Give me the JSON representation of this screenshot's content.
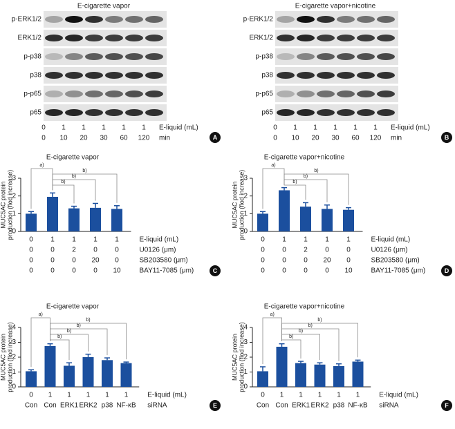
{
  "blots": [
    {
      "title": "E-cigarette vapor",
      "letter": "A",
      "rows": [
        "p-ERK1/2",
        "ERK1/2",
        "p-p38",
        "p38",
        "p-p65",
        "p65"
      ],
      "conditions": [
        {
          "label": "E-liquid (mL)",
          "values": [
            0,
            1,
            1,
            1,
            1,
            1
          ]
        },
        {
          "label": "min",
          "values": [
            0,
            10,
            20,
            30,
            60,
            120
          ]
        }
      ]
    },
    {
      "title": "E-cigarette vapor+nicotine",
      "letter": "B",
      "rows": [
        "p-ERK1/2",
        "ERK1/2",
        "p-p38",
        "p38",
        "p-p65",
        "p65"
      ],
      "conditions": [
        {
          "label": "E-liquid (mL)",
          "values": [
            0,
            1,
            1,
            1,
            1,
            1
          ]
        },
        {
          "label": "min",
          "values": [
            0,
            10,
            20,
            30,
            60,
            120
          ]
        }
      ]
    }
  ],
  "chart_data": [
    {
      "type": "bar",
      "title": "E-cigarette vapor",
      "letter": "C",
      "ylabel": [
        "MUC5AC protein",
        "production (flod increase)"
      ],
      "values": [
        1.0,
        1.95,
        1.3,
        1.33,
        1.27
      ],
      "errors": [
        0.12,
        0.22,
        0.12,
        0.25,
        0.18
      ],
      "color": "#1b4f9e",
      "ylim": [
        0,
        3
      ],
      "yticks": [
        0,
        1,
        2,
        3
      ],
      "brackets": [
        {
          "label": "a)",
          "bars": [
            0,
            1
          ]
        },
        {
          "label": "b)",
          "bars": [
            1,
            4
          ]
        },
        {
          "label": "b)",
          "bars": [
            1,
            3
          ]
        },
        {
          "label": "b)",
          "bars": [
            1,
            2
          ]
        }
      ],
      "conditions": [
        {
          "label": "E-liquid (mL)",
          "values": [
            0,
            1,
            1,
            1,
            1
          ]
        },
        {
          "label": "U0126 (μm)",
          "values": [
            0,
            0,
            2,
            0,
            0
          ]
        },
        {
          "label": "SB203580 (μm)",
          "values": [
            0,
            0,
            0,
            20,
            0
          ]
        },
        {
          "label": "BAY11-7085 (μm)",
          "values": [
            0,
            0,
            0,
            0,
            10
          ]
        }
      ]
    },
    {
      "type": "bar",
      "title": "E-cigarette vapor+nicotine",
      "letter": "D",
      "ylabel": [
        "MUC5AC protein",
        "production (flod increase)"
      ],
      "values": [
        1.0,
        2.32,
        1.4,
        1.27,
        1.22
      ],
      "errors": [
        0.12,
        0.15,
        0.22,
        0.22,
        0.12
      ],
      "color": "#1b4f9e",
      "ylim": [
        0,
        3
      ],
      "yticks": [
        0,
        1,
        2,
        3
      ],
      "brackets": [
        {
          "label": "a)",
          "bars": [
            0,
            1
          ]
        },
        {
          "label": "b)",
          "bars": [
            1,
            4
          ]
        },
        {
          "label": "b)",
          "bars": [
            1,
            3
          ]
        },
        {
          "label": "b)",
          "bars": [
            1,
            2
          ]
        }
      ],
      "conditions": [
        {
          "label": "E-liquid (mL)",
          "values": [
            0,
            1,
            1,
            1,
            1
          ]
        },
        {
          "label": "U0126 (μm)",
          "values": [
            0,
            0,
            2,
            0,
            0
          ]
        },
        {
          "label": "SB203580 (μm)",
          "values": [
            0,
            0,
            0,
            20,
            0
          ]
        },
        {
          "label": "BAY11-7085 (μm)",
          "values": [
            0,
            0,
            0,
            0,
            10
          ]
        }
      ]
    },
    {
      "type": "bar",
      "title": "E-cigarette vapor",
      "letter": "E",
      "ylabel": [
        "MUC5AC protein",
        "production (flod increase)"
      ],
      "values": [
        1.05,
        2.75,
        1.42,
        2.0,
        1.8,
        1.6
      ],
      "errors": [
        0.1,
        0.15,
        0.2,
        0.2,
        0.15,
        0.07
      ],
      "color": "#1b4f9e",
      "ylim": [
        0,
        4
      ],
      "yticks": [
        0,
        1,
        2,
        3,
        4
      ],
      "brackets": [
        {
          "label": "a)",
          "bars": [
            0,
            1
          ]
        },
        {
          "label": "b)",
          "bars": [
            1,
            5
          ]
        },
        {
          "label": "b)",
          "bars": [
            1,
            4
          ]
        },
        {
          "label": "b)",
          "bars": [
            1,
            3
          ]
        },
        {
          "label": "b)",
          "bars": [
            1,
            2
          ]
        }
      ],
      "conditions": [
        {
          "label": "E-liquid (mL)",
          "values": [
            0,
            1,
            1,
            1,
            1,
            1
          ]
        },
        {
          "label": "siRNA",
          "values": [
            "Con",
            "Con",
            "ERK1",
            "ERK2",
            "p38",
            "NF-κB"
          ]
        }
      ]
    },
    {
      "type": "bar",
      "title": "E-cigarette vapor+nicotine",
      "letter": "F",
      "ylabel": [
        "MUC5AC protein",
        "production (flod increase)"
      ],
      "values": [
        1.05,
        2.7,
        1.6,
        1.5,
        1.4,
        1.7
      ],
      "errors": [
        0.3,
        0.2,
        0.12,
        0.12,
        0.15,
        0.1
      ],
      "color": "#1b4f9e",
      "ylim": [
        0,
        4
      ],
      "yticks": [
        0,
        1,
        2,
        3,
        4
      ],
      "brackets": [
        {
          "label": "a)",
          "bars": [
            0,
            1
          ]
        },
        {
          "label": "b)",
          "bars": [
            1,
            5
          ]
        },
        {
          "label": "b)",
          "bars": [
            1,
            4
          ]
        },
        {
          "label": "b)",
          "bars": [
            1,
            3
          ]
        },
        {
          "label": "b)",
          "bars": [
            1,
            2
          ]
        }
      ],
      "conditions": [
        {
          "label": "E-liquid (mL)",
          "values": [
            0,
            1,
            1,
            1,
            1,
            1
          ]
        },
        {
          "label": "siRNA",
          "values": [
            "Con",
            "Con",
            "ERK1",
            "ERK2",
            "p38",
            "NF-κB"
          ]
        }
      ]
    }
  ]
}
